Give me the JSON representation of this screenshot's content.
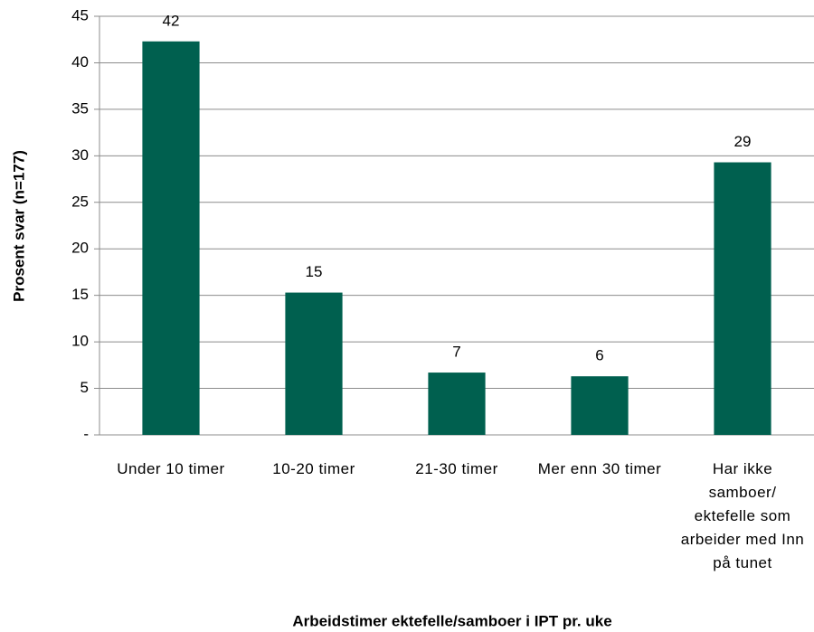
{
  "chart_data": {
    "type": "bar",
    "x_label": "Arbeidstimer ektefelle/samboer i IPT pr. uke",
    "y_label": "Prosent svar (n=177)",
    "categories": [
      "Under 10 timer",
      "10-20 timer",
      "21-30 timer",
      "Mer enn 30 timer",
      "Har ikke samboer/ ektefelle som arbeider med Inn på tunet"
    ],
    "values": [
      42.3,
      15.3,
      6.7,
      6.3,
      29.3
    ],
    "value_labels": [
      "42",
      "15",
      "7",
      "6",
      "29"
    ],
    "color": "#00604f",
    "ylim": [
      0,
      45
    ],
    "yticks": [
      {
        "value": 0,
        "label": "-"
      },
      5,
      10,
      15,
      20,
      25,
      30,
      35,
      40,
      45
    ],
    "grid": true
  }
}
